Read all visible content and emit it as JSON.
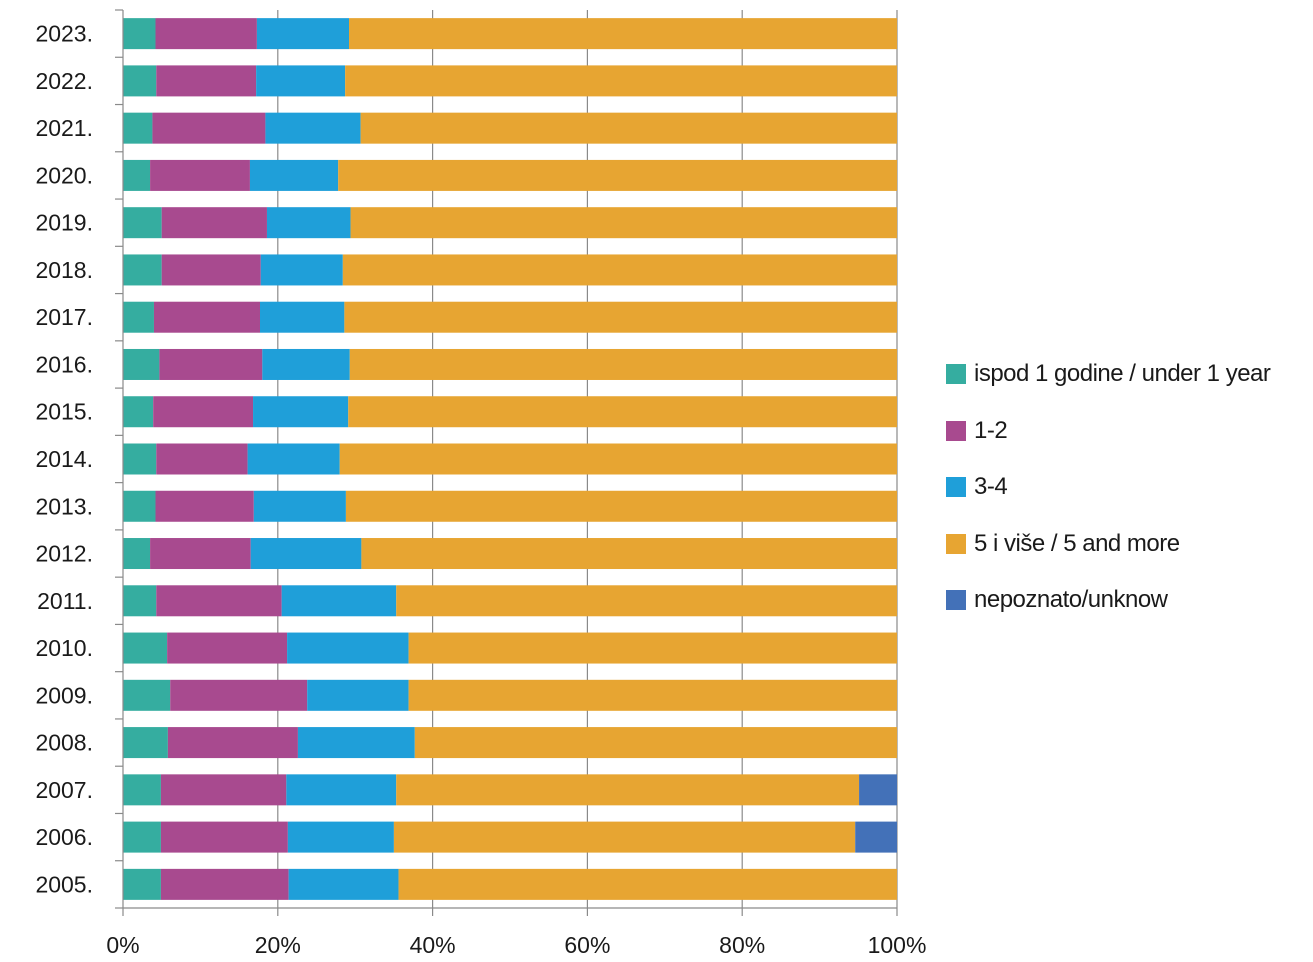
{
  "chart_data": {
    "type": "bar",
    "orientation": "horizontal",
    "stacked": "percent",
    "categories": [
      "2023.",
      "2022.",
      "2021.",
      "2020.",
      "2019.",
      "2018.",
      "2017.",
      "2016.",
      "2015.",
      "2014.",
      "2013.",
      "2012.",
      "2011.",
      "2010.",
      "2009.",
      "2008.",
      "2007.",
      "2006.",
      "2005."
    ],
    "series": [
      {
        "name": "ispod 1 godine / under 1 year",
        "color": "#35ada0",
        "values": [
          4.2,
          4.3,
          3.8,
          3.5,
          5.0,
          5.0,
          4.0,
          4.7,
          3.9,
          4.3,
          4.2,
          3.5,
          4.3,
          5.7,
          6.1,
          5.8,
          4.9,
          4.9,
          4.9
        ]
      },
      {
        "name": "1-2",
        "color": "#a84a8f",
        "values": [
          13.1,
          12.9,
          14.6,
          12.9,
          13.6,
          12.8,
          13.7,
          13.3,
          12.9,
          11.8,
          12.7,
          13.0,
          16.2,
          15.5,
          17.7,
          16.8,
          16.2,
          16.4,
          16.5
        ]
      },
      {
        "name": "3-4",
        "color": "#1f9fd9",
        "values": [
          11.9,
          11.5,
          12.3,
          11.4,
          10.8,
          10.6,
          10.9,
          11.3,
          12.3,
          11.9,
          11.9,
          14.3,
          14.8,
          15.7,
          13.1,
          15.1,
          14.2,
          13.7,
          14.2
        ]
      },
      {
        "name": "5 i više / 5 and more",
        "color": "#e7a532",
        "values": [
          70.8,
          71.3,
          69.3,
          72.2,
          70.6,
          71.6,
          71.4,
          70.7,
          70.9,
          72.0,
          71.2,
          69.2,
          64.7,
          63.1,
          63.1,
          62.3,
          59.8,
          59.6,
          64.4
        ]
      },
      {
        "name": "nepoznato/unknow",
        "color": "#4371b8",
        "values": [
          0,
          0,
          0,
          0,
          0,
          0,
          0,
          0,
          0,
          0,
          0,
          0,
          0,
          0,
          0,
          0,
          4.9,
          5.4,
          0
        ]
      }
    ],
    "x_ticks": [
      "0%",
      "20%",
      "40%",
      "60%",
      "80%",
      "100%"
    ],
    "xlim": [
      0,
      100
    ],
    "grid": "vertical",
    "legend_position": "right"
  }
}
